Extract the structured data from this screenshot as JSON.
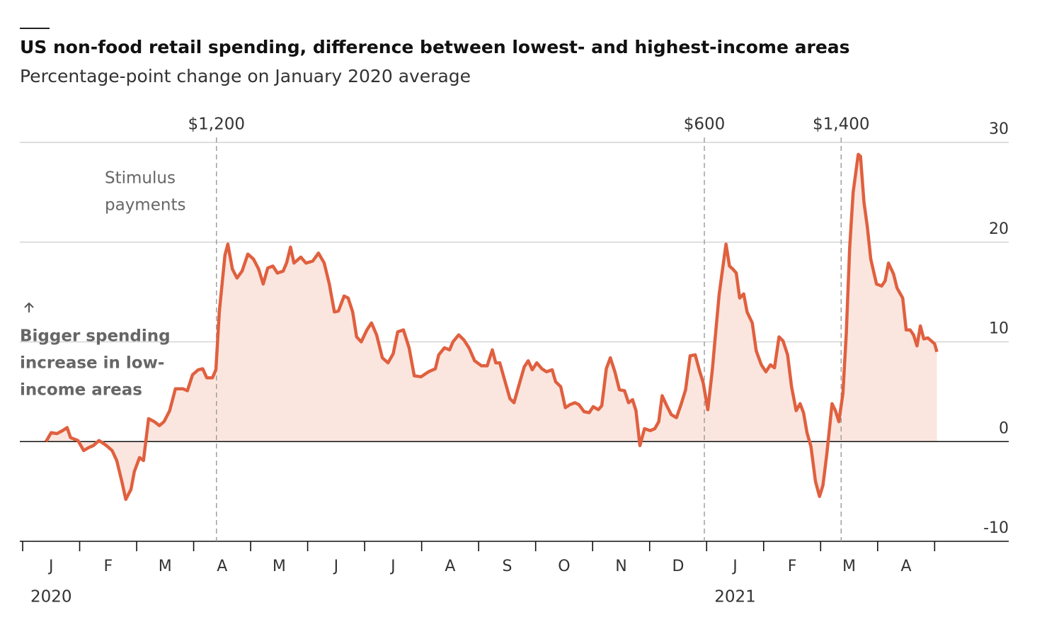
{
  "chart_data": {
    "type": "line",
    "title": "US non-food retail spending, difference between lowest- and highest-income areas",
    "subtitle": "Percentage-point change on January 2020 average",
    "x": [
      0.41,
      0.5,
      0.6,
      0.7,
      0.78,
      0.84,
      0.97,
      1.07,
      1.16,
      1.24,
      1.34,
      1.47,
      1.57,
      1.65,
      1.74,
      1.81,
      1.9,
      1.96,
      2.05,
      2.12,
      2.21,
      2.31,
      2.4,
      2.48,
      2.58,
      2.68,
      2.81,
      2.89,
      2.98,
      3.08,
      3.16,
      3.23,
      3.33,
      3.39,
      3.45,
      3.55,
      3.6,
      3.68,
      3.76,
      3.85,
      3.95,
      4.05,
      4.14,
      4.22,
      4.3,
      4.39,
      4.47,
      4.57,
      4.63,
      4.7,
      4.76,
      4.88,
      4.97,
      5.09,
      5.19,
      5.29,
      5.38,
      5.47,
      5.54,
      5.64,
      5.71,
      5.79,
      5.86,
      5.94,
      6.04,
      6.12,
      6.21,
      6.31,
      6.41,
      6.5,
      6.58,
      6.68,
      6.78,
      6.87,
      6.99,
      7.12,
      7.24,
      7.3,
      7.4,
      7.49,
      7.55,
      7.65,
      7.74,
      7.83,
      7.93,
      8.05,
      8.15,
      8.24,
      8.3,
      8.37,
      8.45,
      8.55,
      8.62,
      8.7,
      8.8,
      8.87,
      8.94,
      9.02,
      9.11,
      9.19,
      9.29,
      9.35,
      9.44,
      9.52,
      9.6,
      9.69,
      9.76,
      9.85,
      9.94,
      10.01,
      10.1,
      10.16,
      10.24,
      10.31,
      10.39,
      10.47,
      10.56,
      10.63,
      10.7,
      10.76,
      10.83,
      10.91,
      11.01,
      11.09,
      11.16,
      11.22,
      11.3,
      11.38,
      11.47,
      11.55,
      11.63,
      11.71,
      11.8,
      11.88,
      11.94,
      12.02,
      12.1,
      12.15,
      12.22,
      12.27,
      12.34,
      12.4,
      12.46,
      12.52,
      12.58,
      12.65,
      12.71,
      12.8,
      12.87,
      12.96,
      13.04,
      13.12,
      13.19,
      13.27,
      13.34,
      13.42,
      13.49,
      13.57,
      13.64,
      13.7,
      13.76,
      13.83,
      13.91,
      13.98,
      14.04,
      14.11,
      14.2,
      14.26,
      14.32,
      14.39,
      14.45,
      14.51,
      14.57,
      14.66,
      14.7,
      14.76,
      14.82,
      14.88,
      14.98,
      15.07,
      15.13,
      15.19,
      15.28,
      15.34,
      15.44,
      15.5,
      15.57,
      15.63,
      15.69,
      15.75,
      15.81,
      15.88,
      15.94,
      16.0,
      16.04
    ],
    "values": [
      0,
      0.9,
      0.8,
      1.1,
      1.4,
      0.4,
      0.1,
      -0.9,
      -0.6,
      -0.4,
      0.1,
      -0.4,
      -0.9,
      -1.9,
      -4.0,
      -5.8,
      -4.8,
      -3.0,
      -1.6,
      -1.9,
      2.3,
      2.0,
      1.6,
      2.0,
      3.1,
      5.3,
      5.3,
      5.1,
      6.7,
      7.2,
      7.3,
      6.4,
      6.4,
      7.2,
      13.0,
      18.7,
      19.8,
      17.3,
      16.4,
      17.1,
      18.8,
      18.3,
      17.3,
      15.8,
      17.4,
      17.6,
      16.9,
      17.1,
      17.9,
      19.5,
      17.9,
      18.5,
      17.9,
      18.1,
      18.9,
      17.9,
      15.8,
      13.0,
      13.1,
      14.6,
      14.4,
      13.0,
      10.5,
      10.0,
      11.2,
      11.9,
      10.7,
      8.4,
      7.9,
      8.8,
      11.0,
      11.2,
      9.4,
      6.6,
      6.5,
      7.0,
      7.3,
      8.7,
      9.4,
      9.2,
      10.0,
      10.7,
      10.2,
      9.4,
      8.1,
      7.6,
      7.6,
      9.2,
      7.9,
      7.9,
      6.3,
      4.3,
      3.9,
      5.5,
      7.5,
      8.1,
      7.2,
      7.9,
      7.3,
      7.0,
      7.2,
      6.0,
      5.5,
      3.4,
      3.7,
      3.9,
      3.7,
      3.0,
      2.9,
      3.5,
      3.2,
      3.6,
      7.3,
      8.4,
      7.0,
      5.2,
      5.1,
      3.9,
      4.2,
      3.1,
      -0.4,
      1.3,
      1.1,
      1.3,
      2.0,
      4.6,
      3.6,
      2.7,
      2.4,
      3.7,
      5.2,
      8.6,
      8.7,
      7.0,
      5.9,
      3.2,
      7.2,
      10.4,
      14.8,
      16.9,
      19.8,
      17.6,
      17.3,
      16.9,
      14.4,
      14.8,
      13.0,
      11.9,
      9.1,
      7.7,
      7.0,
      7.7,
      7.4,
      10.5,
      10.1,
      8.7,
      5.5,
      3.1,
      3.8,
      2.9,
      0.9,
      -0.5,
      -4.0,
      -5.5,
      -4.4,
      -1.2,
      3.8,
      3.1,
      2.0,
      4.8,
      10.8,
      19.4,
      25.0,
      28.8,
      28.6,
      24.0,
      21.5,
      18.3,
      15.8,
      15.6,
      16.1,
      17.9,
      16.8,
      15.4,
      14.4,
      11.2,
      11.2,
      10.7,
      9.6,
      11.6,
      10.3,
      10.4,
      10.1,
      9.8,
      9.0
    ],
    "color": "#e0603f",
    "fill": "#fbe6df",
    "xlim": [
      0,
      17.3
    ],
    "xticks": [
      {
        "value": 0,
        "label": "J"
      },
      {
        "value": 1,
        "label": "F"
      },
      {
        "value": 2,
        "label": "M"
      },
      {
        "value": 3,
        "label": "A"
      },
      {
        "value": 4,
        "label": "M"
      },
      {
        "value": 5,
        "label": "J"
      },
      {
        "value": 6,
        "label": "J"
      },
      {
        "value": 7,
        "label": "A"
      },
      {
        "value": 8,
        "label": "S"
      },
      {
        "value": 9,
        "label": "O"
      },
      {
        "value": 10,
        "label": "N"
      },
      {
        "value": 11,
        "label": "D"
      },
      {
        "value": 12,
        "label": "J"
      },
      {
        "value": 13,
        "label": "F"
      },
      {
        "value": 14,
        "label": "M"
      },
      {
        "value": 15,
        "label": "A"
      }
    ],
    "year_labels": [
      {
        "value": 0,
        "label": "2020"
      },
      {
        "value": 12,
        "label": "2021"
      }
    ],
    "ylim": [
      -10,
      30
    ],
    "yticks": [
      -10,
      0,
      10,
      20,
      30
    ],
    "grid": true,
    "events": [
      {
        "x": 3.4,
        "label": "$1,200"
      },
      {
        "x": 11.96,
        "label": "$600"
      },
      {
        "x": 14.36,
        "label": "$1,400"
      }
    ],
    "event_note": [
      "Stimulus",
      "payments"
    ],
    "y_note": [
      "Bigger spending",
      "increase in low-",
      "income areas"
    ]
  }
}
